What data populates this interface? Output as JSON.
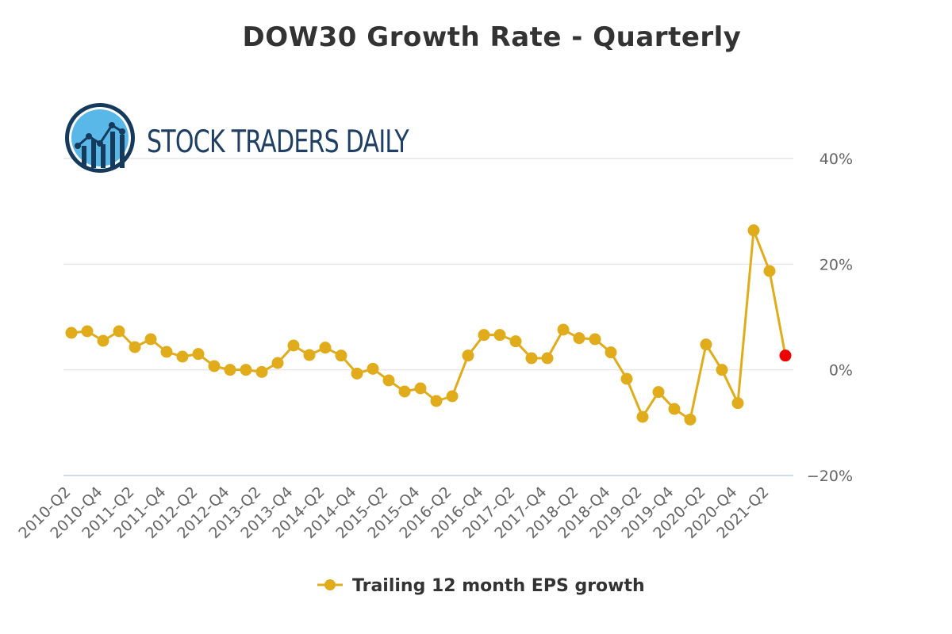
{
  "chart_data": {
    "type": "line",
    "title": "DOW30 Growth Rate - Quarterly",
    "brand": "STOCK TRADERS DAILY",
    "ylim": [
      -20,
      40
    ],
    "yticks": [
      -20,
      0,
      20,
      40
    ],
    "ytick_labels": [
      "−20%",
      "0%",
      "20%",
      "40%"
    ],
    "grid": true,
    "legend_position": "bottom-center",
    "x_labels": [
      "2010-Q2",
      "2010-Q4",
      "2011-Q2",
      "2011-Q4",
      "2012-Q2",
      "2012-Q4",
      "2013-Q2",
      "2013-Q4",
      "2014-Q2",
      "2014-Q4",
      "2015-Q2",
      "2015-Q4",
      "2016-Q2",
      "2016-Q4",
      "2017-Q2",
      "2017-Q4",
      "2018-Q2",
      "2018-Q4",
      "2019-Q2",
      "2019-Q4",
      "2020-Q2",
      "2020-Q4",
      "2021-Q2"
    ],
    "series": [
      {
        "name": "Trailing 12 month EPS growth",
        "color": "#e0ac1c",
        "last_point_color": "#ee0000",
        "values": [
          7.0,
          7.3,
          5.5,
          7.3,
          4.3,
          5.8,
          3.4,
          2.5,
          3.0,
          0.7,
          0.0,
          0.0,
          -0.4,
          1.3,
          4.6,
          2.8,
          4.2,
          2.7,
          -0.7,
          0.2,
          -2.0,
          -4.1,
          -3.5,
          -5.9,
          -5.0,
          2.7,
          6.6,
          6.6,
          5.4,
          2.2,
          2.2,
          7.6,
          6.0,
          5.8,
          3.3,
          -1.7,
          -8.9,
          -4.2,
          -7.4,
          -9.4,
          4.8,
          0.0,
          -6.3,
          26.4,
          18.7,
          2.7
        ]
      }
    ]
  }
}
